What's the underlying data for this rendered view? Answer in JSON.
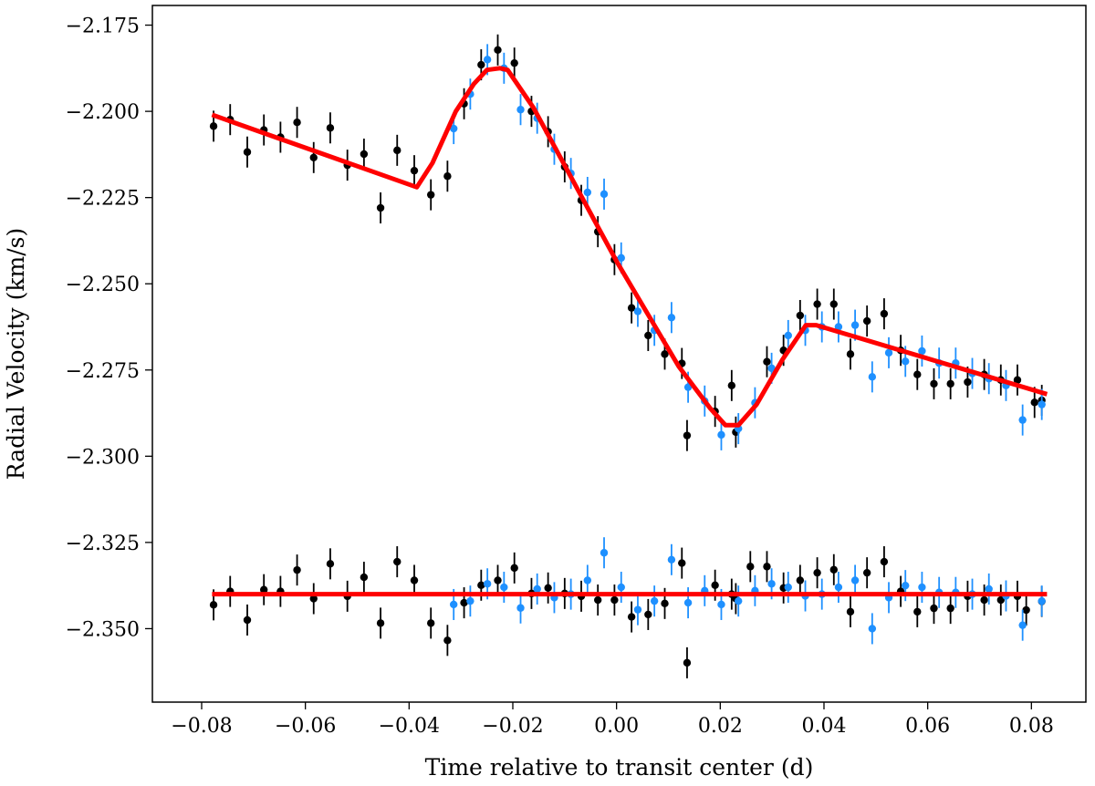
{
  "chart_data": {
    "type": "scatter",
    "xlabel": "Time relative to transit center (d)",
    "ylabel": "Radial Velocity (km/s)",
    "xlim": [
      -0.0895,
      0.0905
    ],
    "ylim": [
      -2.3713,
      -2.1693
    ],
    "x_ticks": [
      -0.08,
      -0.06,
      -0.04,
      -0.02,
      0.0,
      0.02,
      0.04,
      0.06,
      0.08
    ],
    "x_tick_labels": [
      "−0.08",
      "−0.06",
      "−0.04",
      "−0.02",
      "0.00",
      "0.02",
      "0.04",
      "0.06",
      "0.08"
    ],
    "y_ticks": [
      -2.175,
      -2.2,
      -2.225,
      -2.25,
      -2.275,
      -2.3,
      -2.325,
      -2.35
    ],
    "y_tick_labels": [
      "−2.175",
      "−2.200",
      "−2.225",
      "−2.250",
      "−2.275",
      "−2.300",
      "−2.325",
      "−2.350"
    ],
    "grid": false,
    "colors": {
      "black_points": "#000000",
      "blue_points": "#1e90ff",
      "model": "#ff0000"
    },
    "error_bar": 0.0045,
    "series": [
      {
        "color": "#000000",
        "points": [
          [
            -0.0777,
            -2.2043
          ],
          [
            -0.0745,
            -2.2024
          ],
          [
            -0.0712,
            -2.2118
          ],
          [
            -0.068,
            -2.2054
          ],
          [
            -0.0648,
            -2.2075
          ],
          [
            -0.0616,
            -2.2032
          ],
          [
            -0.0584,
            -2.2134
          ],
          [
            -0.0552,
            -2.2048
          ],
          [
            -0.0519,
            -2.2156
          ],
          [
            -0.0487,
            -2.2124
          ],
          [
            -0.0455,
            -2.228
          ],
          [
            -0.0423,
            -2.2113
          ],
          [
            -0.039,
            -2.2172
          ],
          [
            -0.0358,
            -2.2242
          ],
          [
            -0.0326,
            -2.2188
          ],
          [
            -0.0294,
            -2.1978
          ],
          [
            -0.0261,
            -2.1865
          ],
          [
            -0.0229,
            -2.1822
          ],
          [
            -0.0197,
            -2.186
          ],
          [
            -0.0164,
            -2.2
          ],
          [
            -0.0132,
            -2.2059
          ],
          [
            -0.01,
            -2.2161
          ],
          [
            -0.0068,
            -2.2258
          ],
          [
            -0.0036,
            -2.2349
          ],
          [
            -0.0004,
            -2.243
          ],
          [
            0.0029,
            -2.257
          ],
          [
            0.0061,
            -2.265
          ],
          [
            0.0093,
            -2.2704
          ],
          [
            0.0126,
            -2.2731
          ],
          [
            0.0136,
            -2.294
          ],
          [
            0.019,
            -2.287
          ],
          [
            0.0222,
            -2.2795
          ],
          [
            0.023,
            -2.293
          ],
          [
            0.029,
            -2.2726
          ],
          [
            0.0322,
            -2.2693
          ],
          [
            0.0354,
            -2.2592
          ],
          [
            0.0387,
            -2.2559
          ],
          [
            0.0419,
            -2.2559
          ],
          [
            0.0451,
            -2.2704
          ],
          [
            0.0483,
            -2.2608
          ],
          [
            0.0516,
            -2.2587
          ],
          [
            0.0548,
            -2.2693
          ],
          [
            0.058,
            -2.2763
          ],
          [
            0.0612,
            -2.279
          ],
          [
            0.0644,
            -2.279
          ],
          [
            0.0677,
            -2.2785
          ],
          [
            0.0709,
            -2.2763
          ],
          [
            0.0741,
            -2.2779
          ],
          [
            0.0773,
            -2.2779
          ],
          [
            0.0806,
            -2.2844
          ],
          [
            0.082,
            -2.2838
          ],
          [
            -0.0777,
            -2.3431
          ],
          [
            -0.0745,
            -2.3392
          ],
          [
            -0.0712,
            -2.3475
          ],
          [
            -0.068,
            -2.3387
          ],
          [
            -0.0648,
            -2.3392
          ],
          [
            -0.0616,
            -2.333
          ],
          [
            -0.0584,
            -2.3413
          ],
          [
            -0.0552,
            -2.3312
          ],
          [
            -0.0519,
            -2.3406
          ],
          [
            -0.0487,
            -2.3351
          ],
          [
            -0.0455,
            -2.3484
          ],
          [
            -0.0423,
            -2.3306
          ],
          [
            -0.039,
            -2.336
          ],
          [
            -0.0358,
            -2.3484
          ],
          [
            -0.0326,
            -2.3534
          ],
          [
            -0.0294,
            -2.3425
          ],
          [
            -0.0261,
            -2.3374
          ],
          [
            -0.0229,
            -2.336
          ],
          [
            -0.0197,
            -2.3324
          ],
          [
            -0.0164,
            -2.3398
          ],
          [
            -0.0132,
            -2.3382
          ],
          [
            -0.01,
            -2.3398
          ],
          [
            -0.0068,
            -2.3406
          ],
          [
            -0.0036,
            -2.3417
          ],
          [
            -0.0004,
            -2.3417
          ],
          [
            0.0029,
            -2.3466
          ],
          [
            0.0061,
            -2.3459
          ],
          [
            0.0093,
            -2.3427
          ],
          [
            0.0126,
            -2.331
          ],
          [
            0.0136,
            -2.3599
          ],
          [
            0.019,
            -2.3374
          ],
          [
            0.0222,
            -2.34
          ],
          [
            0.023,
            -2.3413
          ],
          [
            0.0258,
            -2.332
          ],
          [
            0.029,
            -2.332
          ],
          [
            0.0322,
            -2.3382
          ],
          [
            0.0354,
            -2.336
          ],
          [
            0.0387,
            -2.3338
          ],
          [
            0.0419,
            -2.3329
          ],
          [
            0.0451,
            -2.3451
          ],
          [
            0.0483,
            -2.3338
          ],
          [
            0.0516,
            -2.3306
          ],
          [
            0.0548,
            -2.3392
          ],
          [
            0.058,
            -2.3451
          ],
          [
            0.0612,
            -2.3441
          ],
          [
            0.0644,
            -2.3441
          ],
          [
            0.0677,
            -2.3406
          ],
          [
            0.0709,
            -2.3417
          ],
          [
            0.0741,
            -2.3417
          ],
          [
            0.0773,
            -2.3406
          ],
          [
            0.079,
            -2.3446
          ],
          [
            0.082,
            -2.3421
          ]
        ]
      },
      {
        "color": "#1e90ff",
        "points": [
          [
            -0.0314,
            -2.205
          ],
          [
            -0.0282,
            -2.195
          ],
          [
            -0.0249,
            -2.185
          ],
          [
            -0.0217,
            -2.1875
          ],
          [
            -0.0185,
            -2.1995
          ],
          [
            -0.0153,
            -2.202
          ],
          [
            -0.012,
            -2.211
          ],
          [
            -0.0088,
            -2.218
          ],
          [
            -0.0056,
            -2.2235
          ],
          [
            -0.0024,
            -2.224
          ],
          [
            0.0009,
            -2.2425
          ],
          [
            0.0041,
            -2.258
          ],
          [
            0.0073,
            -2.2635
          ],
          [
            0.0106,
            -2.2598
          ],
          [
            0.0138,
            -2.28
          ],
          [
            0.017,
            -2.284
          ],
          [
            0.0202,
            -2.2938
          ],
          [
            0.0235,
            -2.292
          ],
          [
            0.0267,
            -2.2845
          ],
          [
            0.0299,
            -2.2745
          ],
          [
            0.0331,
            -2.265
          ],
          [
            0.0364,
            -2.2635
          ],
          [
            0.0396,
            -2.2625
          ],
          [
            0.0428,
            -2.2625
          ],
          [
            0.046,
            -2.262
          ],
          [
            0.0493,
            -2.277
          ],
          [
            0.0525,
            -2.27
          ],
          [
            0.0557,
            -2.2725
          ],
          [
            0.0589,
            -2.2695
          ],
          [
            0.0622,
            -2.273
          ],
          [
            0.0654,
            -2.273
          ],
          [
            0.0686,
            -2.276
          ],
          [
            0.0718,
            -2.2775
          ],
          [
            0.0751,
            -2.2795
          ],
          [
            0.0783,
            -2.2895
          ],
          [
            0.082,
            -2.285
          ],
          [
            -0.0314,
            -2.343
          ],
          [
            -0.0282,
            -2.342
          ],
          [
            -0.0249,
            -2.337
          ],
          [
            -0.0217,
            -2.338
          ],
          [
            -0.0185,
            -2.344
          ],
          [
            -0.0153,
            -2.3385
          ],
          [
            -0.012,
            -2.341
          ],
          [
            -0.0088,
            -2.34
          ],
          [
            -0.0056,
            -2.336
          ],
          [
            -0.0024,
            -2.328
          ],
          [
            0.0009,
            -2.338
          ],
          [
            0.0041,
            -2.3445
          ],
          [
            0.0073,
            -2.342
          ],
          [
            0.0106,
            -2.33
          ],
          [
            0.0138,
            -2.3425
          ],
          [
            0.017,
            -2.339
          ],
          [
            0.0202,
            -2.343
          ],
          [
            0.0235,
            -2.342
          ],
          [
            0.0267,
            -2.339
          ],
          [
            0.0299,
            -2.337
          ],
          [
            0.0331,
            -2.338
          ],
          [
            0.0364,
            -2.3405
          ],
          [
            0.0396,
            -2.34
          ],
          [
            0.0428,
            -2.338
          ],
          [
            0.046,
            -2.336
          ],
          [
            0.0493,
            -2.35
          ],
          [
            0.0525,
            -2.341
          ],
          [
            0.0557,
            -2.3375
          ],
          [
            0.0589,
            -2.338
          ],
          [
            0.0622,
            -2.3395
          ],
          [
            0.0654,
            -2.3395
          ],
          [
            0.0686,
            -2.34
          ],
          [
            0.0718,
            -2.3385
          ],
          [
            0.0751,
            -2.3405
          ],
          [
            0.0783,
            -2.349
          ],
          [
            0.082,
            -2.342
          ]
        ]
      },
      {
        "type": "line",
        "color": "#ff0000",
        "points": [
          [
            -0.078,
            -2.201
          ],
          [
            -0.0385,
            -2.222
          ],
          [
            -0.0355,
            -2.215
          ],
          [
            -0.031,
            -2.2
          ],
          [
            -0.0275,
            -2.192
          ],
          [
            -0.025,
            -2.188
          ],
          [
            -0.0225,
            -2.1875
          ],
          [
            -0.021,
            -2.188
          ],
          [
            -0.016,
            -2.199
          ],
          [
            0.0,
            -2.2435
          ],
          [
            0.012,
            -2.274
          ],
          [
            0.018,
            -2.286
          ],
          [
            0.021,
            -2.291
          ],
          [
            0.0235,
            -2.291
          ],
          [
            0.027,
            -2.285
          ],
          [
            0.032,
            -2.272
          ],
          [
            0.0365,
            -2.262
          ],
          [
            0.0385,
            -2.262
          ],
          [
            0.083,
            -2.282
          ]
        ]
      },
      {
        "type": "line",
        "color": "#ff0000",
        "points": [
          [
            -0.078,
            -2.34
          ],
          [
            0.083,
            -2.34
          ]
        ]
      }
    ]
  }
}
